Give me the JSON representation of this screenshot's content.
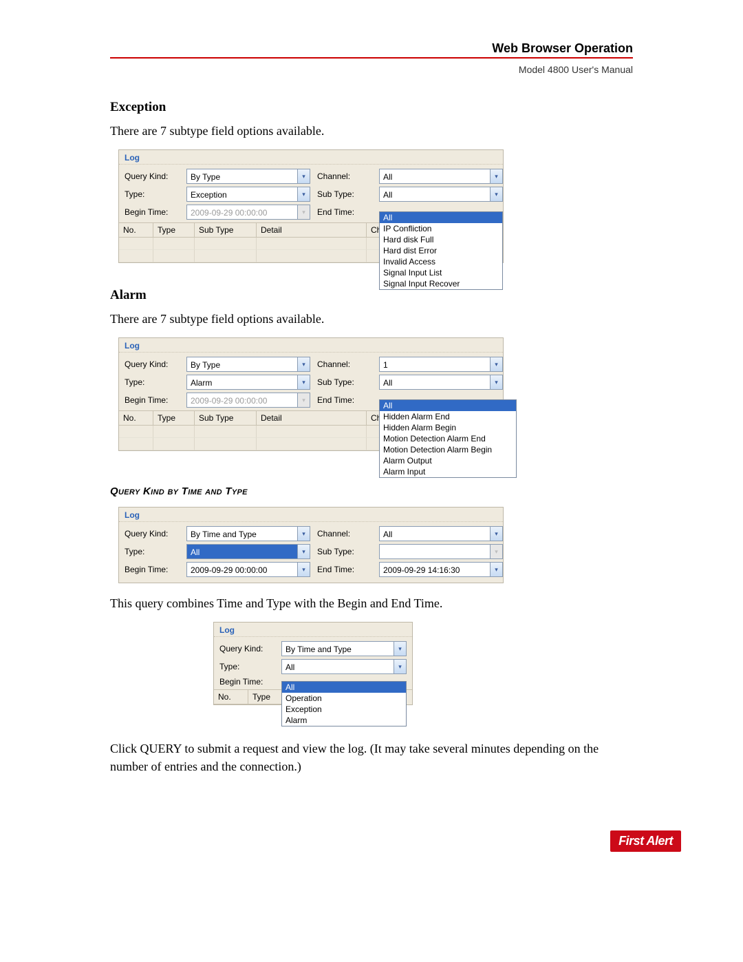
{
  "header": {
    "title": "Web Browser Operation",
    "subtitle": "Model 4800 User's Manual"
  },
  "exception": {
    "heading": "Exception",
    "body": "There are 7 subtype field options available.",
    "panel": {
      "title": "Log",
      "labels": {
        "queryKind": "Query Kind:",
        "channel": "Channel:",
        "type": "Type:",
        "subType": "Sub Type:",
        "beginTime": "Begin Time:",
        "endTime": "End Time:"
      },
      "values": {
        "queryKind": "By Type",
        "channel": "All",
        "type": "Exception",
        "subType": "All",
        "beginTime": "2009-09-29 00:00:00"
      },
      "columns": [
        "No.",
        "Type",
        "Sub Type",
        "Detail",
        "Ch…"
      ],
      "colWidths": [
        "50px",
        "60px",
        "90px",
        "160px",
        "50px"
      ],
      "dropdown": [
        "All",
        "IP Confliction",
        "Hard disk Full",
        "Hard dist Error",
        "Invalid Access",
        "Signal Input List",
        "Signal Input Recover"
      ]
    }
  },
  "alarm": {
    "heading": "Alarm",
    "body": "There are 7 subtype field options available.",
    "panel": {
      "title": "Log",
      "labels": {
        "queryKind": "Query Kind:",
        "channel": "Channel:",
        "type": "Type:",
        "subType": "Sub Type:",
        "beginTime": "Begin Time:",
        "endTime": "End Time:"
      },
      "values": {
        "queryKind": "By Type",
        "channel": "1",
        "type": "Alarm",
        "subType": "All",
        "beginTime": "2009-09-29 00:00:00"
      },
      "columns": [
        "No.",
        "Type",
        "Sub Type",
        "Detail",
        "Ch…"
      ],
      "colWidths": [
        "50px",
        "60px",
        "90px",
        "160px",
        "50px"
      ],
      "dropdown": [
        "All",
        "Hidden Alarm End",
        "Hidden Alarm Begin",
        "Motion Detection Alarm End",
        "Motion Detection Alarm Begin",
        "Alarm Output",
        "Alarm Input"
      ]
    }
  },
  "subheading2": "Query Kind by Time and Type",
  "timeType": {
    "panel": {
      "title": "Log",
      "labels": {
        "queryKind": "Query Kind:",
        "channel": "Channel:",
        "type": "Type:",
        "subType": "Sub Type:",
        "beginTime": "Begin Time:",
        "endTime": "End Time:"
      },
      "values": {
        "queryKind": "By Time and Type",
        "channel": "All",
        "type": "All",
        "subType": "",
        "beginTime": "2009-09-29 00:00:00",
        "endTime": "2009-09-29 14:16:30"
      }
    },
    "body": "This query combines Time and Type with the Begin and End Time."
  },
  "typeDropdown": {
    "panel": {
      "title": "Log",
      "labels": {
        "queryKind": "Query Kind:",
        "type": "Type:",
        "beginTime": "Begin Time:"
      },
      "values": {
        "queryKind": "By Time and Type",
        "type": "All"
      },
      "columns": [
        "No.",
        "Type"
      ],
      "colWidths": [
        "50px",
        "50px"
      ],
      "dropdown": [
        "All",
        "Operation",
        "Exception",
        "Alarm"
      ]
    }
  },
  "closing": "Click QUERY to submit a request and view the log. (It may take several minutes depending on the number of entries and the connection.)",
  "logo": "First Alert"
}
